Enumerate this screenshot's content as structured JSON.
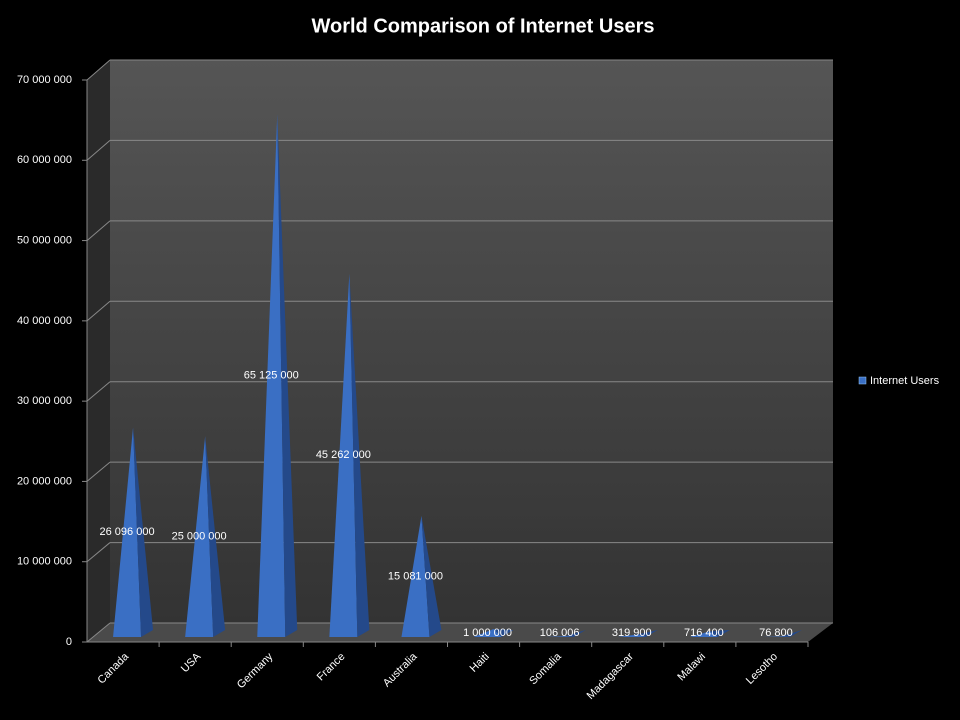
{
  "chart_data": {
    "type": "bar",
    "title": "World Comparison of Internet Users",
    "categories": [
      "Canada",
      "USA",
      "Germany",
      "France",
      "Australia",
      "Haiti",
      "Somalia",
      "Madagascar",
      "Malawi",
      "Lesotho"
    ],
    "series": [
      {
        "name": "Internet Users",
        "color": "#3a6fc4",
        "values": [
          26096000,
          25000000,
          65125000,
          45262000,
          15081000,
          1000000,
          106006,
          319900,
          716400,
          76800
        ],
        "value_labels": [
          "26 096 000",
          "25 000 000",
          "65 125 000",
          "45 262 000",
          "15 081 000",
          "1 000 000",
          "106 006",
          "319 900",
          "716 400",
          "76 800"
        ]
      }
    ],
    "ylim": [
      0,
      70000000
    ],
    "yticks": [
      0,
      {
        "value": 10000000,
        "label": "10 000 000"
      },
      {
        "value": 20000000,
        "label": "20 000 000"
      },
      {
        "value": 30000000,
        "label": "30 000 000"
      },
      {
        "value": 40000000,
        "label": "40 000 000"
      },
      {
        "value": 50000000,
        "label": "50 000 000"
      },
      {
        "value": 60000000,
        "label": "60 000 000"
      },
      {
        "value": 70000000,
        "label": "70 000 000"
      }
    ],
    "grid": true,
    "legend": "right"
  }
}
